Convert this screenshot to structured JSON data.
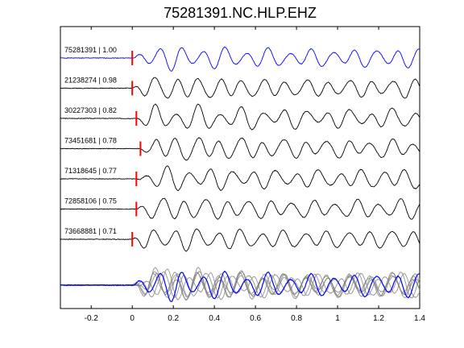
{
  "chart_data": {
    "type": "line",
    "title": "75281391.NC.HLP.EHZ",
    "xlabel": "",
    "ylabel": "",
    "xlim": [
      -0.35,
      1.4
    ],
    "xticks": [
      -0.2,
      0,
      0.2,
      0.4,
      0.6,
      0.8,
      1,
      1.2,
      1.4
    ],
    "xtick_labels": [
      "-0.2",
      "0",
      "0.2",
      "0.4",
      "0.6",
      "0.8",
      "1",
      "1.2",
      "1.4"
    ],
    "grid": false,
    "colors": {
      "reference": "#0000ff",
      "trace": "#000000",
      "stack": "#808080",
      "pick": "#ff0000"
    },
    "traces": [
      {
        "label": "75281391 | 1.00",
        "pick_time": 0.0,
        "seed": 1,
        "reference": true
      },
      {
        "label": "21238274 | 0.98",
        "pick_time": 0.0,
        "seed": 2
      },
      {
        "label": "30227303 | 0.82",
        "pick_time": 0.02,
        "seed": 3
      },
      {
        "label": "73451681 | 0.78",
        "pick_time": 0.04,
        "seed": 4
      },
      {
        "label": "71318645 | 0.77",
        "pick_time": 0.02,
        "seed": 5
      },
      {
        "label": "72858106 | 0.75",
        "pick_time": 0.02,
        "seed": 6
      },
      {
        "label": "73668881 | 0.71",
        "pick_time": 0.0,
        "seed": 7
      }
    ]
  }
}
